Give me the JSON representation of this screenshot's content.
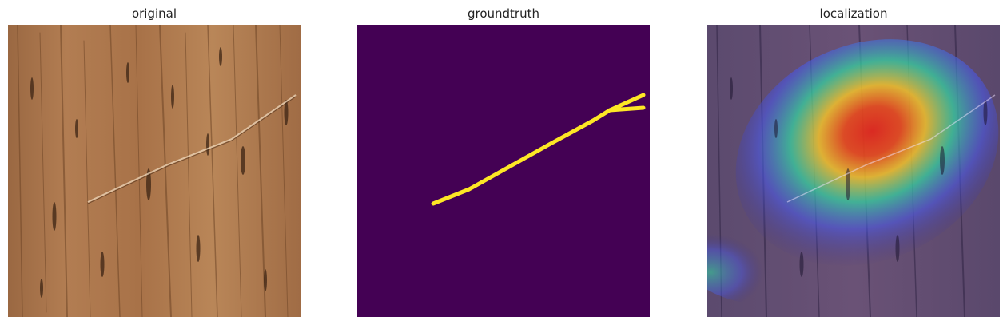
{
  "panels": [
    {
      "title": "original",
      "image": "wood-texture-with-scratch"
    },
    {
      "title": "groundtruth",
      "image": "binary-mask-scratch"
    },
    {
      "title": "localization",
      "image": "heatmap-overlay"
    }
  ],
  "colors": {
    "wood_base": "#b07a4f",
    "wood_dark": "#7a4e2c",
    "mask_background": "#440154",
    "mask_foreground": "#fde725",
    "heat_low": "#3b2f8a",
    "heat_mid": "#35d0a0",
    "heat_high": "#e0281e"
  }
}
